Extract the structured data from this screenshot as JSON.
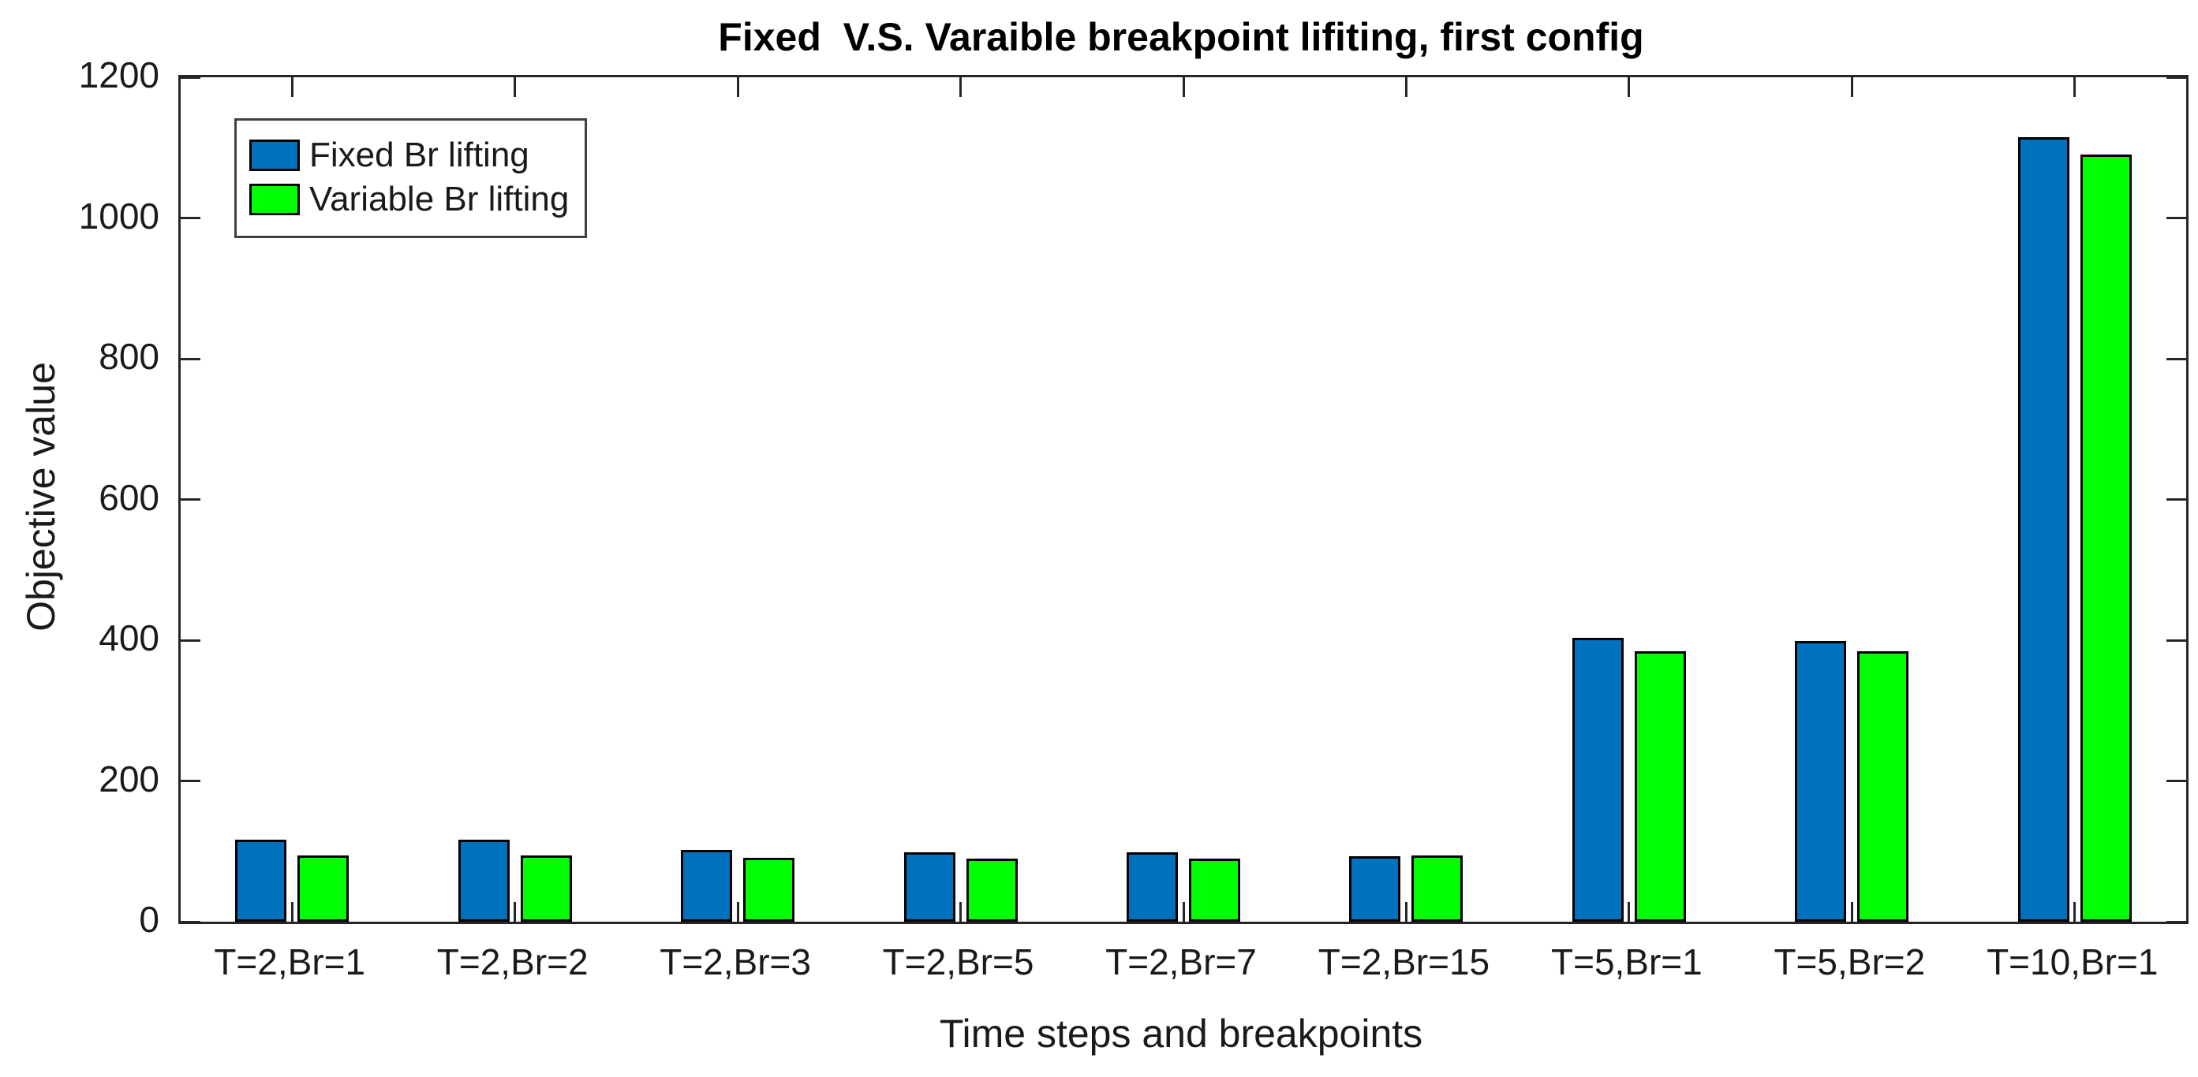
{
  "chart_data": {
    "type": "bar",
    "title": "Fixed  V.S. Varaible breakpoint lifiting, first config",
    "xlabel": "Time steps and breakpoints",
    "ylabel": "Objective value",
    "categories": [
      "T=2,Br=1",
      "T=2,Br=2",
      "T=2,Br=3",
      "T=2,Br=5",
      "T=2,Br=7",
      "T=2,Br=15",
      "T=5,Br=1",
      "T=5,Br=2",
      "T=10,Br=1"
    ],
    "series": [
      {
        "name": "Fixed Br lifting",
        "color": "#0072BD",
        "values": [
          117,
          117,
          102,
          99,
          99,
          93,
          403,
          399,
          1115
        ]
      },
      {
        "name": "Variable Br lifting",
        "color": "#00FF00",
        "values": [
          94,
          94,
          91,
          90,
          90,
          94,
          384,
          384,
          1090
        ]
      }
    ],
    "ylim": [
      0,
      1200
    ],
    "ytick_step": 200,
    "yticks": [
      0,
      200,
      400,
      600,
      800,
      1000,
      1200
    ],
    "grid": false,
    "legend_position": "top-left",
    "bar_edge_color": "#000000",
    "axis_color": "#262626"
  }
}
